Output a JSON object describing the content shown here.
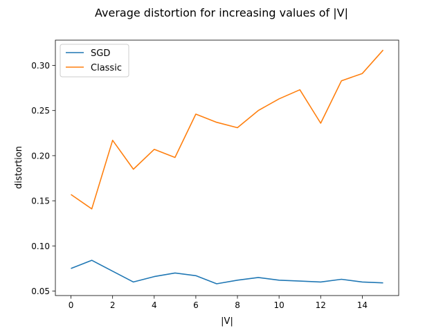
{
  "chart_data": {
    "type": "line",
    "title": "Average distortion for increasing values of |V|",
    "xlabel": "|V|",
    "ylabel": "distortion",
    "xlim": [
      -0.75,
      15.75
    ],
    "ylim": [
      0.045,
      0.328
    ],
    "xticks": [
      0,
      2,
      4,
      6,
      8,
      10,
      12,
      14
    ],
    "xtick_labels": [
      "0",
      "2",
      "4",
      "6",
      "8",
      "10",
      "12",
      "14"
    ],
    "yticks": [
      0.05,
      0.1,
      0.15,
      0.2,
      0.25,
      0.3
    ],
    "ytick_labels": [
      "0.05",
      "0.10",
      "0.15",
      "0.20",
      "0.25",
      "0.30"
    ],
    "grid": false,
    "legend_position": "upper-left",
    "x": [
      0,
      1,
      2,
      3,
      4,
      5,
      6,
      7,
      8,
      9,
      10,
      11,
      12,
      13,
      14,
      15
    ],
    "series": [
      {
        "name": "SGD",
        "color": "#1f77b4",
        "values": [
          0.075,
          0.084,
          0.072,
          0.06,
          0.066,
          0.07,
          0.067,
          0.058,
          0.062,
          0.065,
          0.062,
          0.061,
          0.06,
          0.063,
          0.06,
          0.059
        ]
      },
      {
        "name": "Classic",
        "color": "#ff7f0e",
        "values": [
          0.157,
          0.141,
          0.217,
          0.185,
          0.207,
          0.198,
          0.246,
          0.237,
          0.231,
          0.25,
          0.263,
          0.273,
          0.236,
          0.283,
          0.291,
          0.317
        ]
      }
    ]
  }
}
